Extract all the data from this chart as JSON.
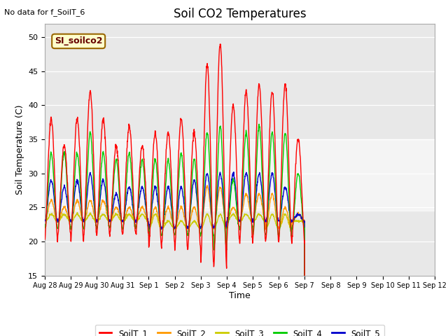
{
  "title": "Soil CO2 Temperatures",
  "xlabel": "Time",
  "ylabel": "Soil Temperature (C)",
  "note": "No data for f_SoilT_6",
  "annotation": "SI_soilco2",
  "ylim": [
    15,
    52
  ],
  "yticks": [
    15,
    20,
    25,
    30,
    35,
    40,
    45,
    50
  ],
  "background_color": "#ffffff",
  "plot_bg_color": "#e8e8e8",
  "shaded_band": [
    24.5,
    35.0
  ],
  "series_colors": {
    "SoilT_1": "#ff0000",
    "SoilT_2": "#ff9900",
    "SoilT_3": "#cccc00",
    "SoilT_4": "#00cc00",
    "SoilT_5": "#0000cc"
  },
  "x_tick_labels": [
    "Aug 28",
    "Aug 29",
    "Aug 30",
    "Aug 31",
    "Sep 1",
    "Sep 2",
    "Sep 3",
    "Sep 4",
    "Sep 5",
    "Sep 6",
    "Sep 7",
    "Sep 8",
    "Sep 9",
    "Sep 10",
    "Sep 11",
    "Sep 12"
  ],
  "soilT1_peaks": [
    38,
    34,
    38,
    42,
    38,
    34,
    37,
    34,
    36,
    36,
    38,
    36,
    46,
    49,
    40,
    42,
    43,
    42,
    43,
    35
  ],
  "soilT1_mins": [
    20,
    21,
    20,
    21,
    21,
    21,
    21,
    21,
    19,
    20,
    19,
    19,
    17,
    16,
    20,
    20,
    20,
    20,
    20,
    20
  ],
  "soilT4_peaks": [
    33,
    33,
    33,
    36,
    33,
    32,
    33,
    32,
    32,
    32,
    33,
    32,
    36,
    37,
    29,
    36,
    37,
    36,
    36,
    30
  ],
  "soilT4_mins": [
    22,
    22,
    22,
    22,
    22,
    22,
    22,
    22,
    21,
    21,
    21,
    21,
    21,
    19,
    22,
    22,
    21,
    21,
    21,
    22
  ],
  "soilT5_peaks": [
    29,
    28,
    29,
    30,
    29,
    27,
    28,
    28,
    28,
    28,
    28,
    29,
    30,
    30,
    30,
    30,
    30,
    30,
    28,
    24
  ],
  "soilT5_mins": [
    23,
    23,
    23,
    23,
    23,
    23,
    23,
    23,
    22,
    22,
    22,
    22,
    22,
    22,
    23,
    23,
    23,
    23,
    23,
    23
  ],
  "soilT2_peaks": [
    26,
    25,
    26,
    26,
    26,
    25,
    25,
    25,
    25,
    25,
    25,
    25,
    28,
    28,
    25,
    27,
    27,
    27,
    25,
    24
  ],
  "soilT2_mins": [
    23,
    23,
    23,
    23,
    23,
    23,
    23,
    23,
    22,
    22,
    22,
    22,
    22,
    22,
    23,
    23,
    23,
    22,
    22,
    23
  ],
  "soilT3_peaks": [
    24,
    24,
    24,
    24,
    24,
    24,
    24,
    24,
    24,
    23,
    23,
    23,
    24,
    24,
    24,
    24,
    24,
    24,
    24,
    23
  ],
  "soilT3_mins": [
    23,
    23,
    23,
    23,
    23,
    23,
    23,
    23,
    22,
    22,
    22,
    22,
    22,
    22,
    23,
    23,
    23,
    22,
    22,
    23
  ]
}
